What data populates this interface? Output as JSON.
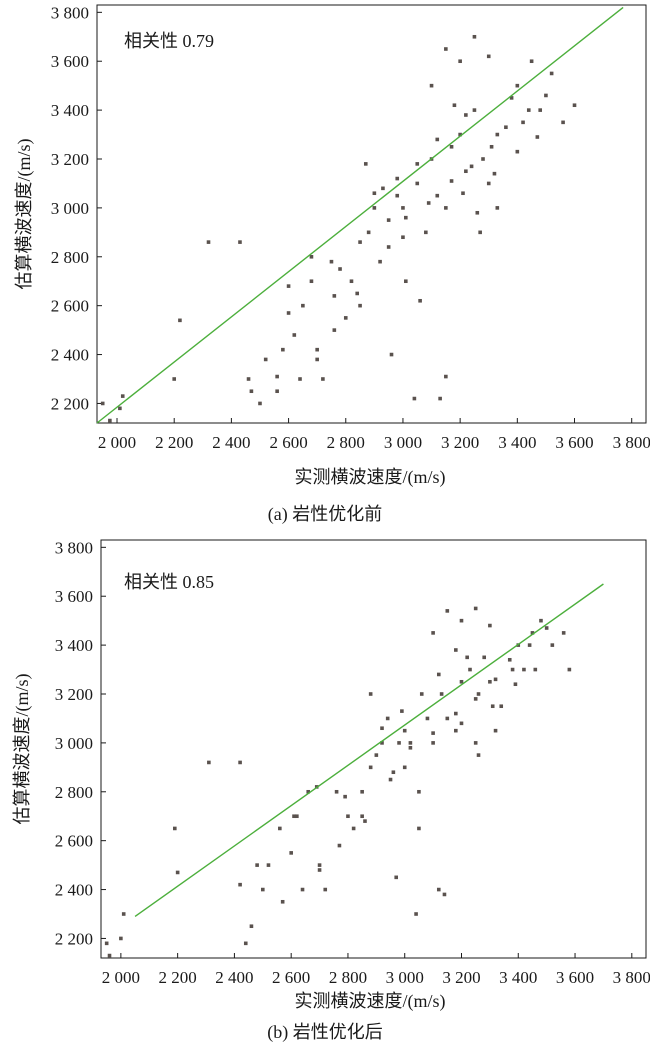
{
  "chart_data": [
    {
      "type": "scatter",
      "panel_caption": "(a) 岩性优化前",
      "xlabel": "实测横波速度/(m/s)",
      "ylabel": "估算横波速度/(m/s)",
      "annotation": "相关性 0.79",
      "xlim": [
        1930,
        3850
      ],
      "ylim": [
        2120,
        3830
      ],
      "x_ticks": [
        {
          "value": 2000,
          "label": "2 000"
        },
        {
          "value": 2200,
          "label": "2 200"
        },
        {
          "value": 2400,
          "label": "2 400"
        },
        {
          "value": 2600,
          "label": "2 600"
        },
        {
          "value": 2800,
          "label": "2 800"
        },
        {
          "value": 3000,
          "label": "3 000"
        },
        {
          "value": 3200,
          "label": "3 200"
        },
        {
          "value": 3400,
          "label": "3 400"
        },
        {
          "value": 3600,
          "label": "3 600"
        },
        {
          "value": 3800,
          "label": "3 800"
        }
      ],
      "y_ticks": [
        {
          "value": 2200,
          "label": "2 200"
        },
        {
          "value": 2400,
          "label": "2 400"
        },
        {
          "value": 2600,
          "label": "2 600"
        },
        {
          "value": 2800,
          "label": "2 800"
        },
        {
          "value": 3000,
          "label": "3 000"
        },
        {
          "value": 3200,
          "label": "3 200"
        },
        {
          "value": 3400,
          "label": "3 400"
        },
        {
          "value": 3600,
          "label": "3 600"
        },
        {
          "value": 3800,
          "label": "3 800"
        }
      ],
      "point_color": "#5a524e",
      "fit_line": {
        "color": "#4caf3c",
        "x": [
          1930,
          3770
        ],
        "y": [
          2120,
          3820
        ]
      },
      "points_x": [
        1950,
        1975,
        2010,
        2020,
        2200,
        2220,
        2320,
        2430,
        2470,
        2460,
        2500,
        2520,
        2560,
        2580,
        2600,
        2620,
        2650,
        2680,
        2700,
        2720,
        2750,
        2760,
        2800,
        2820,
        2850,
        2880,
        2900,
        2920,
        2950,
        2980,
        3000,
        3010,
        3050,
        3080,
        3100,
        3120,
        3150,
        3170,
        3200,
        3220,
        3250,
        3280,
        3300,
        3330,
        3380,
        3400,
        3450,
        3480,
        3520,
        3560,
        3600,
        3100,
        3150,
        3200,
        3250,
        3300,
        3180,
        3220,
        3120,
        3050,
        2980,
        2900,
        3000,
        3060,
        3130,
        3270,
        3330,
        3420,
        2870,
        2930,
        2850,
        2760,
        2700,
        2640,
        2560,
        2600,
        2680,
        2780,
        2840,
        2960,
        3040,
        3150,
        3210,
        3260,
        3320,
        3400,
        3470,
        2950,
        3010,
        3090,
        3170,
        3240,
        3310,
        3360,
        3440,
        3500
      ],
      "points_y": [
        2200,
        2130,
        2180,
        2230,
        2300,
        2540,
        2860,
        2860,
        2250,
        2300,
        2200,
        2380,
        2310,
        2420,
        2570,
        2480,
        2600,
        2700,
        2380,
        2300,
        2780,
        2640,
        2550,
        2700,
        2860,
        2900,
        3000,
        2780,
        2950,
        3050,
        3000,
        2700,
        3100,
        2900,
        3200,
        3050,
        3000,
        3250,
        3300,
        3150,
        3400,
        3200,
        3100,
        3300,
        3450,
        3500,
        3600,
        3400,
        3550,
        3350,
        3420,
        3500,
        3650,
        3600,
        3700,
        3620,
        3420,
        3380,
        3280,
        3180,
        3120,
        3060,
        2880,
        2620,
        2220,
        2900,
        3000,
        3350,
        3180,
        3080,
        2600,
        2500,
        2420,
        2300,
        2250,
        2680,
        2800,
        2750,
        2650,
        2400,
        2220,
        2310,
        3060,
        2980,
        3140,
        3230,
        3290,
        2840,
        2960,
        3020,
        3110,
        3170,
        3250,
        3330,
        3400,
        3460
      ]
    },
    {
      "type": "scatter",
      "panel_caption": "(b) 岩性优化后",
      "xlabel": "实测横波速度/(m/s)",
      "ylabel": "估算横波速度/(m/s)",
      "annotation": "相关性 0.85",
      "xlim": [
        1930,
        3850
      ],
      "ylim": [
        2120,
        3830
      ],
      "x_ticks": [
        {
          "value": 2000,
          "label": "2 000"
        },
        {
          "value": 2200,
          "label": "2 200"
        },
        {
          "value": 2400,
          "label": "2 400"
        },
        {
          "value": 2600,
          "label": "2 600"
        },
        {
          "value": 2800,
          "label": "2 800"
        },
        {
          "value": 3000,
          "label": "3 000"
        },
        {
          "value": 3200,
          "label": "3 200"
        },
        {
          "value": 3400,
          "label": "3 400"
        },
        {
          "value": 3600,
          "label": "3 600"
        },
        {
          "value": 3800,
          "label": "3 800"
        }
      ],
      "y_ticks": [
        {
          "value": 2200,
          "label": "2 200"
        },
        {
          "value": 2400,
          "label": "2 400"
        },
        {
          "value": 2600,
          "label": "2 600"
        },
        {
          "value": 2800,
          "label": "2 800"
        },
        {
          "value": 3000,
          "label": "3 000"
        },
        {
          "value": 3200,
          "label": "3 200"
        },
        {
          "value": 3400,
          "label": "3 400"
        },
        {
          "value": 3600,
          "label": "3 600"
        },
        {
          "value": 3800,
          "label": "3 800"
        }
      ],
      "point_color": "#5a524e",
      "fit_line": {
        "color": "#4caf3c",
        "x": [
          2050,
          3700
        ],
        "y": [
          2290,
          3650
        ]
      },
      "points_x": [
        1950,
        1960,
        2000,
        2010,
        2200,
        2190,
        2310,
        2420,
        2440,
        2420,
        2460,
        2480,
        2500,
        2520,
        2560,
        2600,
        2620,
        2660,
        2700,
        2720,
        2760,
        2800,
        2820,
        2850,
        2880,
        2900,
        2920,
        2950,
        2980,
        3000,
        3020,
        3050,
        3080,
        3100,
        3130,
        3150,
        3180,
        3200,
        3230,
        3260,
        3280,
        3300,
        3340,
        3380,
        3400,
        3450,
        3480,
        3520,
        3560,
        3580,
        3100,
        3150,
        3200,
        3250,
        3300,
        3180,
        3220,
        3120,
        3060,
        2990,
        2920,
        3000,
        3050,
        3120,
        3260,
        3320,
        3420,
        2880,
        2940,
        2860,
        2770,
        2700,
        2640,
        2570,
        2610,
        2690,
        2790,
        2850,
        2970,
        3040,
        3140,
        3200,
        3250,
        3310,
        3390,
        3460,
        2960,
        3020,
        3100,
        3180,
        3250,
        3320,
        3370,
        3440,
        3500
      ],
      "points_y": [
        2180,
        2130,
        2200,
        2300,
        2470,
        2650,
        2920,
        2920,
        2180,
        2420,
        2250,
        2500,
        2400,
        2500,
        2650,
        2550,
        2700,
        2800,
        2500,
        2400,
        2800,
        2700,
        2650,
        2800,
        2900,
        2950,
        3000,
        2850,
        3000,
        3050,
        3000,
        2800,
        3100,
        3000,
        3200,
        3100,
        3050,
        3250,
        3300,
        3200,
        3350,
        3250,
        3150,
        3300,
        3400,
        3450,
        3500,
        3400,
        3450,
        3300,
        3450,
        3540,
        3500,
        3550,
        3480,
        3380,
        3350,
        3280,
        3200,
        3130,
        3060,
        2900,
        2650,
        2400,
        2950,
        3050,
        3300,
        3200,
        3100,
        2680,
        2580,
        2480,
        2400,
        2350,
        2700,
        2820,
        2780,
        2700,
        2450,
        2300,
        2380,
        3080,
        3000,
        3150,
        3240,
        3300,
        2880,
        2980,
        3040,
        3120,
        3180,
        3260,
        3340,
        3400,
        3470
      ]
    }
  ]
}
